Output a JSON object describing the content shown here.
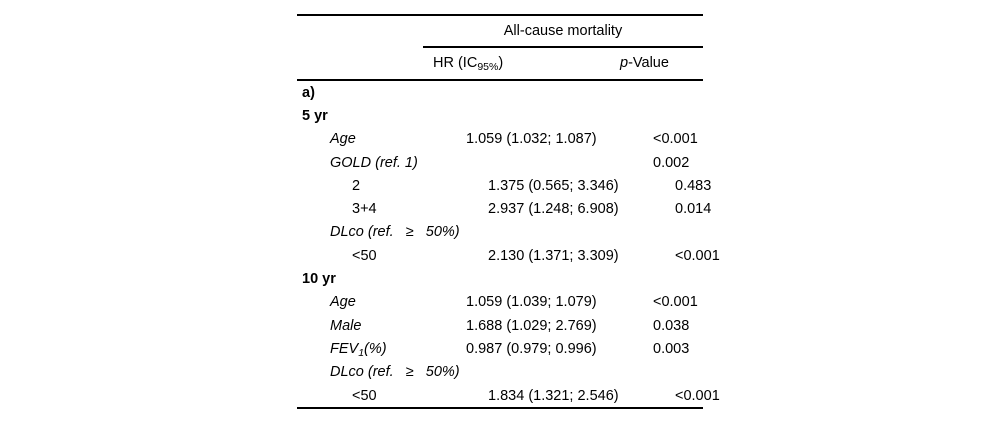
{
  "page": {
    "background_color": "#ffffff",
    "text_color": "#000000"
  },
  "table": {
    "panel_label": "a)",
    "spanner_label": "All-cause mortality",
    "header": {
      "hr_prefix": "HR (IC",
      "hr_sub": "95%",
      "hr_suffix": ")",
      "p_italic": "p",
      "p_rest": "-Value"
    },
    "rows": [
      {
        "section": true,
        "indent": 0,
        "italic": false,
        "label": "a)",
        "hr": "",
        "p": ""
      },
      {
        "section": true,
        "indent": 0,
        "italic": false,
        "label": "5 yr",
        "hr": "",
        "p": ""
      },
      {
        "section": false,
        "indent": 1,
        "italic": true,
        "label": "Age",
        "hr": "1.059 (1.032; 1.087)",
        "p": "<0.001"
      },
      {
        "section": false,
        "indent": 1,
        "italic": true,
        "label": "GOLD (ref. 1)",
        "hr": "",
        "p": "0.002"
      },
      {
        "section": false,
        "indent": 2,
        "italic": false,
        "label": "2",
        "hr": "1.375 (0.565; 3.346)",
        "p": "0.483"
      },
      {
        "section": false,
        "indent": 2,
        "italic": false,
        "label": "3+4",
        "hr": "2.937 (1.248; 6.908)",
        "p": "0.014"
      },
      {
        "section": false,
        "indent": 1,
        "italic": true,
        "label": "DLco (ref.   ≥   50%)",
        "hr": "",
        "p": ""
      },
      {
        "section": false,
        "indent": 2,
        "italic": false,
        "label": "<50",
        "hr": "2.130 (1.371; 3.309)",
        "p": "<0.001"
      },
      {
        "section": true,
        "indent": 0,
        "italic": false,
        "label": "10 yr",
        "hr": "",
        "p": ""
      },
      {
        "section": false,
        "indent": 1,
        "italic": true,
        "label": "Age",
        "hr": "1.059 (1.039; 1.079)",
        "p": "<0.001"
      },
      {
        "section": false,
        "indent": 1,
        "italic": true,
        "label": "Male",
        "hr": "1.688 (1.029; 2.769)",
        "p": "0.038"
      },
      {
        "section": false,
        "indent": 1,
        "italic": true,
        "label": "FEV",
        "label_sub": "1",
        "label_suffix": "(%)",
        "hr": "0.987 (0.979; 0.996)",
        "p": "0.003"
      },
      {
        "section": false,
        "indent": 1,
        "italic": true,
        "label": "DLco (ref.   ≥   50%)",
        "hr": "",
        "p": ""
      },
      {
        "section": false,
        "indent": 2,
        "italic": false,
        "label": "<50",
        "hr": "1.834 (1.321; 2.546)",
        "p": "<0.001"
      }
    ]
  }
}
